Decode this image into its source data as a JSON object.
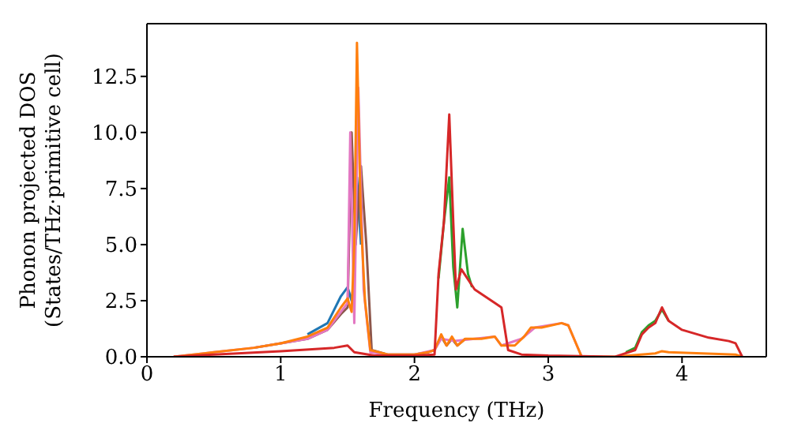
{
  "chart_data": {
    "type": "line",
    "xlabel": "Frequency (THz)",
    "ylabel": "Phonon projected DOS\n(States/THz·primitive cell)",
    "xlim": [
      0,
      4.63
    ],
    "xticks": [
      0,
      1,
      2,
      3,
      4
    ],
    "ylim": [
      0,
      14.85
    ],
    "yticks": [
      {
        "value": 0,
        "label": "0.0"
      },
      {
        "value": 2.5,
        "label": "2.5"
      },
      {
        "value": 5,
        "label": "5.0"
      },
      {
        "value": 7.5,
        "label": "7.5"
      },
      {
        "value": 10,
        "label": "10.0"
      },
      {
        "value": 12.5,
        "label": "12.5"
      }
    ],
    "series": [
      {
        "color": "#1f77b4",
        "x": [
          1.2,
          1.35,
          1.45,
          1.5,
          1.53,
          1.55,
          1.57,
          1.6
        ],
        "values": [
          1.0,
          1.5,
          2.7,
          3.1,
          2.5,
          3.5,
          8,
          5
        ]
      },
      {
        "color": "#8c564b",
        "x": [
          0.8,
          1.0,
          1.2,
          1.35,
          1.45,
          1.5,
          1.53,
          1.56,
          1.6,
          1.64,
          1.68,
          1.8,
          2.0,
          2.1,
          2.15,
          2.2,
          2.24,
          2.28,
          2.32,
          2.38
        ],
        "values": [
          0.4,
          0.6,
          0.8,
          1.2,
          1.9,
          2.2,
          10,
          5,
          8.5,
          5,
          0.3,
          0.1,
          0.1,
          0.2,
          0.3,
          0.9,
          0.5,
          0.8,
          0.5,
          0.8
        ]
      },
      {
        "color": "#e377c2",
        "x": [
          0.2,
          0.5,
          0.8,
          1.0,
          1.2,
          1.35,
          1.45,
          1.5,
          1.52,
          1.55,
          1.58,
          1.62,
          1.67,
          1.8,
          2.0,
          2.15,
          2.2,
          2.3,
          2.6,
          2.65,
          2.8,
          2.9,
          3.1,
          3.15,
          3.25
        ],
        "values": [
          0,
          0.2,
          0.4,
          0.6,
          0.8,
          1.2,
          2.0,
          2.4,
          10,
          1.5,
          12,
          3,
          0.2,
          0.1,
          0.1,
          0.3,
          0.8,
          0.7,
          0.9,
          0.5,
          0.8,
          1.3,
          1.5,
          1.4,
          0
        ]
      },
      {
        "color": "#ff7f0e",
        "x": [
          0.2,
          0.5,
          0.8,
          1.0,
          1.2,
          1.35,
          1.45,
          1.5,
          1.53,
          1.55,
          1.57,
          1.6,
          1.63,
          1.67,
          1.8,
          2.0,
          2.1,
          2.15,
          2.2,
          2.24,
          2.28,
          2.32,
          2.38,
          2.5,
          2.6,
          2.65,
          2.75,
          2.82,
          2.87,
          2.95,
          3.1,
          3.15,
          3.25,
          3.5,
          3.6,
          3.8,
          3.85,
          3.9,
          4.4,
          4.45
        ],
        "values": [
          0,
          0.2,
          0.4,
          0.6,
          0.9,
          1.3,
          2.2,
          2.6,
          2.0,
          5,
          14,
          6,
          2.5,
          0.3,
          0.1,
          0.1,
          0.2,
          0.3,
          1.0,
          0.5,
          0.9,
          0.5,
          0.8,
          0.8,
          0.9,
          0.5,
          0.5,
          0.9,
          1.3,
          1.3,
          1.5,
          1.4,
          0,
          0,
          0.05,
          0.15,
          0.25,
          0.2,
          0.1,
          0
        ]
      },
      {
        "color": "#2ca02c",
        "x": [
          2.18,
          2.22,
          2.26,
          2.29,
          2.32,
          2.36,
          2.4,
          2.43,
          3.0,
          3.58,
          3.65,
          3.7,
          3.75,
          3.8,
          3.85,
          3.9
        ],
        "values": [
          3.5,
          6,
          8,
          4,
          2.2,
          5.7,
          3.7,
          3.1,
          null,
          0.2,
          0.4,
          1.1,
          1.4,
          1.6,
          2.1,
          1.6
        ]
      },
      {
        "color": "#d62728",
        "x": [
          0.2,
          0.5,
          1.0,
          1.4,
          1.5,
          1.55,
          1.7,
          2.0,
          2.15,
          2.18,
          2.22,
          2.26,
          2.29,
          2.31,
          2.35,
          2.45,
          2.6,
          2.65,
          2.7,
          2.8,
          3.0,
          3.5,
          3.55,
          3.65,
          3.7,
          3.75,
          3.8,
          3.85,
          3.9,
          4.0,
          4.2,
          4.35,
          4.4,
          4.45
        ],
        "values": [
          0,
          0.1,
          0.25,
          0.4,
          0.5,
          0.2,
          0.05,
          0.05,
          0.1,
          3.7,
          6,
          10.8,
          6,
          3,
          3.9,
          3,
          2.4,
          2.2,
          0.3,
          0.1,
          0.05,
          0,
          0.1,
          0.3,
          1,
          1.3,
          1.5,
          2.2,
          1.6,
          1.2,
          0.85,
          0.7,
          0.6,
          0
        ]
      }
    ]
  }
}
